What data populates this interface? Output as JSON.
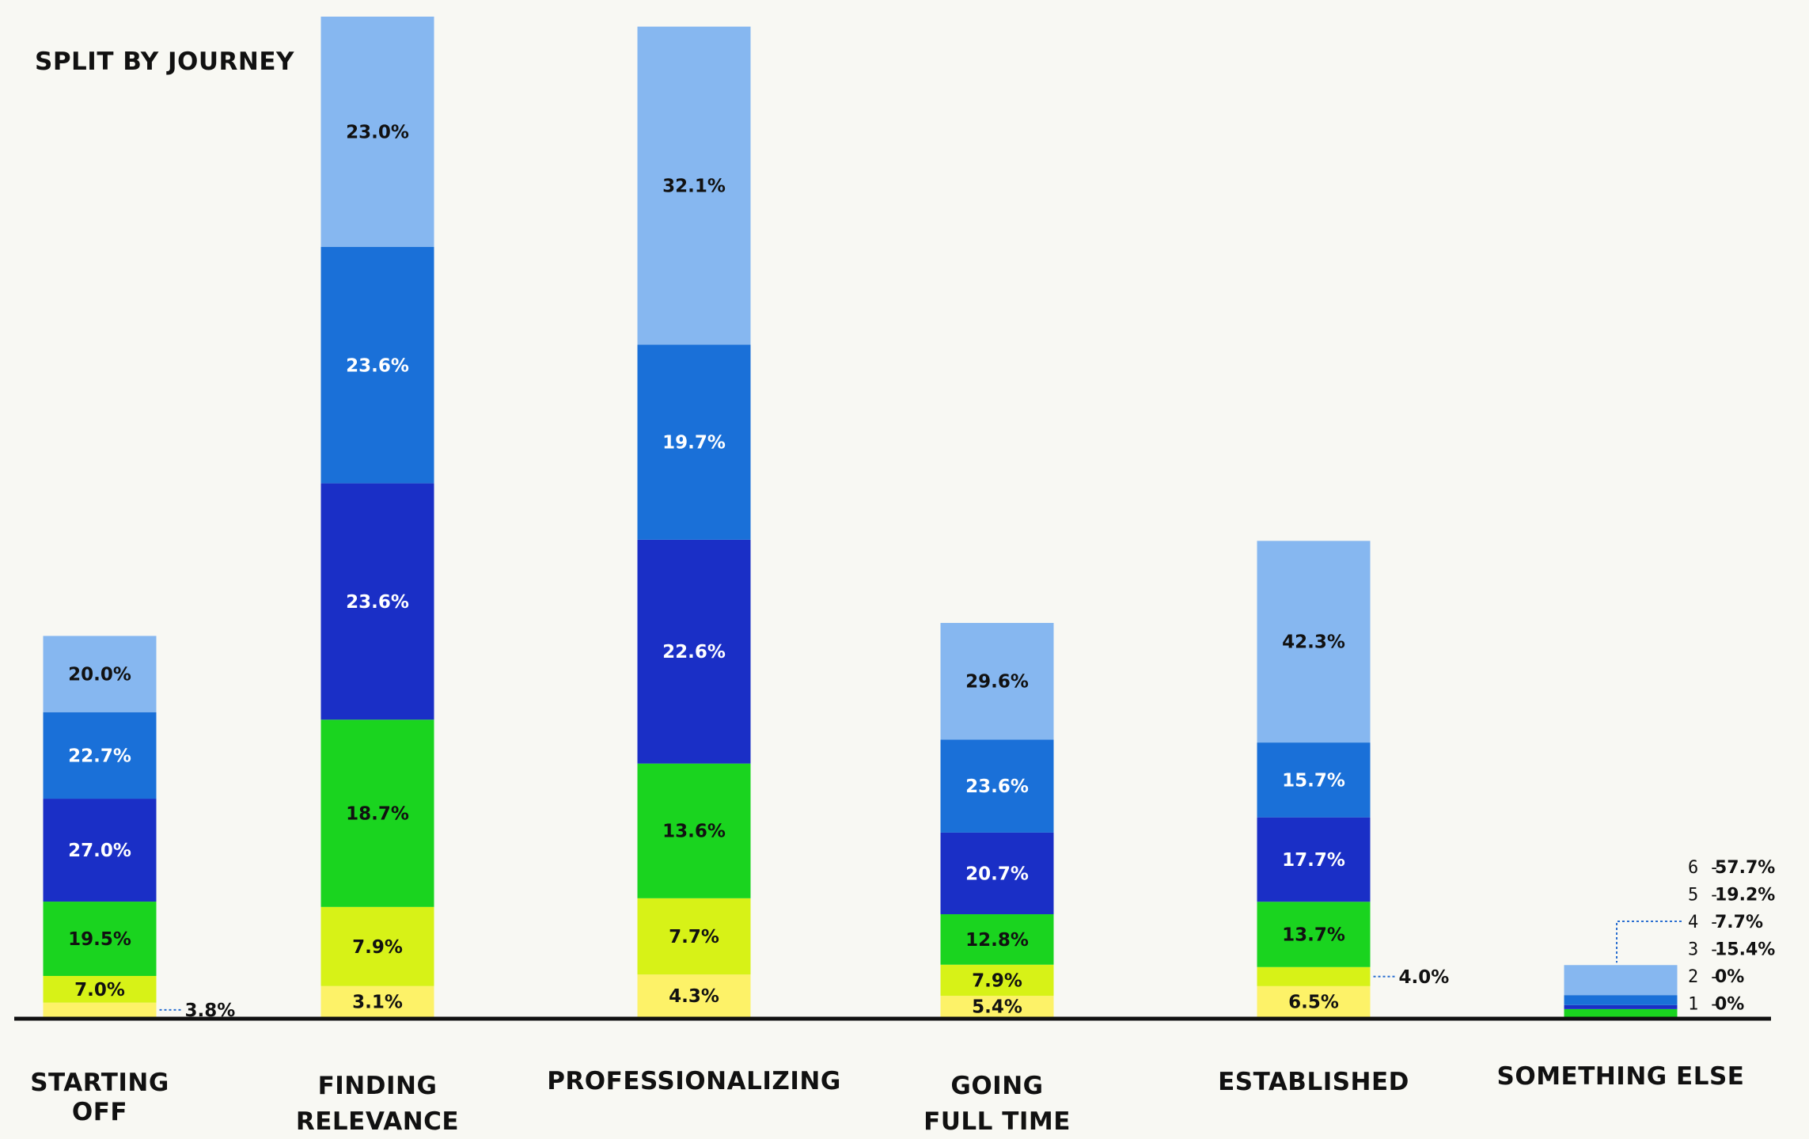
{
  "chart_data": {
    "type": "bar",
    "stacked": true,
    "title": "SPLIT BY JOURNEY",
    "categories": [
      [
        "STARTING",
        "OFF"
      ],
      [
        "FINDING",
        "RELEVANCE"
      ],
      [
        "PROFESSIONALIZING"
      ],
      [
        "GOING",
        "FULL TIME"
      ],
      [
        "ESTABLISHED"
      ],
      [
        "SOMETHING ELSE"
      ]
    ],
    "series": [
      {
        "level": "1",
        "color": "#fdf268",
        "label_color": "#111111",
        "values": [
          3.8,
          3.1,
          4.3,
          5.4,
          6.5,
          0
        ]
      },
      {
        "level": "2",
        "color": "#d7f217",
        "label_color": "#111111",
        "values": [
          7.0,
          7.9,
          7.7,
          7.9,
          4.0,
          0
        ]
      },
      {
        "level": "3",
        "color": "#1ad41f",
        "label_color": "#111111",
        "values": [
          19.5,
          18.7,
          13.6,
          12.8,
          13.7,
          15.4
        ]
      },
      {
        "level": "4",
        "color": "#1a2fc6",
        "label_color": "#ffffff",
        "values": [
          27.0,
          23.6,
          22.6,
          20.7,
          17.7,
          7.7
        ]
      },
      {
        "level": "5",
        "color": "#1a70d8",
        "label_color": "#ffffff",
        "values": [
          22.7,
          23.6,
          19.7,
          23.6,
          15.7,
          19.2
        ]
      },
      {
        "level": "6",
        "color": "#86b7f0",
        "label_color": "#111111",
        "values": [
          20.0,
          23.0,
          32.1,
          29.6,
          42.3,
          57.7
        ]
      }
    ],
    "value_labels": [
      [
        "3.8%",
        "7.0%",
        "19.5%",
        "27.0%",
        "22.7%",
        "20.0%"
      ],
      [
        "3.1%",
        "7.9%",
        "18.7%",
        "23.6%",
        "23.6%",
        "23.0%"
      ],
      [
        "4.3%",
        "7.7%",
        "13.6%",
        "22.6%",
        "19.7%",
        "32.1%"
      ],
      [
        "5.4%",
        "7.9%",
        "12.8%",
        "20.7%",
        "23.6%",
        "29.6%"
      ],
      [
        "6.5%",
        "4.0%",
        "13.7%",
        "17.7%",
        "15.7%",
        "42.3%"
      ],
      [
        "",
        "",
        "",
        "",
        "",
        ""
      ]
    ],
    "stack_totals_relative": [
      0.381,
      1.0,
      0.99,
      0.394,
      0.476,
      0.052
    ],
    "legend": [
      {
        "num": "6",
        "value": "57.7%"
      },
      {
        "num": "5",
        "value": "19.2%"
      },
      {
        "num": "4",
        "value": "7.7%"
      },
      {
        "num": "3",
        "value": "15.4%"
      },
      {
        "num": "2",
        "value": "0%"
      },
      {
        "num": "1",
        "value": "0%"
      }
    ],
    "grid": false,
    "legend_placement": "right of SOMETHING ELSE bar"
  }
}
